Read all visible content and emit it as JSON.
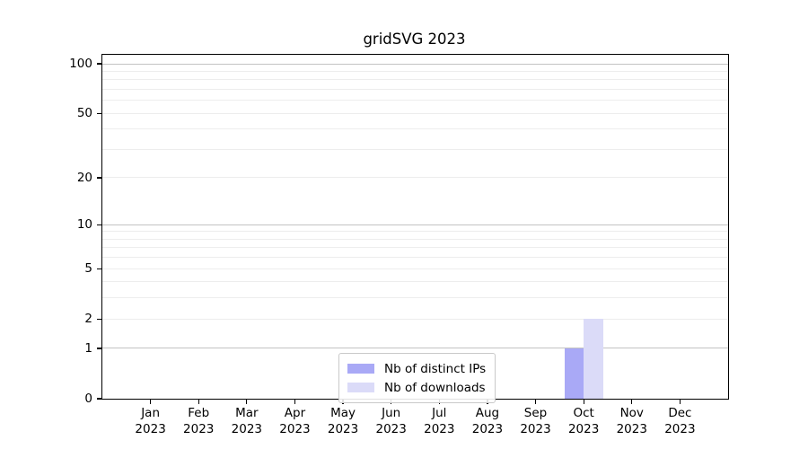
{
  "figure": {
    "title": "gridSVG 2023"
  },
  "chart_data": {
    "type": "bar",
    "title": "gridSVG 2023",
    "categories": [
      "Jan",
      "Feb",
      "Mar",
      "Apr",
      "May",
      "Jun",
      "Jul",
      "Aug",
      "Sep",
      "Oct",
      "Nov",
      "Dec"
    ],
    "x_sublabel_year": "2023",
    "series": [
      {
        "name": "Nb of distinct IPs",
        "color": "#a9a9f6",
        "values": [
          0,
          0,
          0,
          0,
          0,
          0,
          0,
          0,
          0,
          1,
          0,
          0
        ]
      },
      {
        "name": "Nb of downloads",
        "color": "#dbdbf8",
        "values": [
          0,
          0,
          0,
          0,
          0,
          0,
          0,
          0,
          0,
          2,
          0,
          0
        ]
      }
    ],
    "y_axis": {
      "scale": "log1p",
      "limits": [
        0,
        100
      ],
      "major_ticks": [
        0,
        1,
        2,
        5,
        10,
        20,
        50,
        100
      ],
      "decade_gridlines": [
        1,
        10,
        100
      ],
      "minor_gridlines": [
        2,
        3,
        4,
        5,
        6,
        7,
        8,
        9,
        20,
        30,
        40,
        50,
        60,
        70,
        80,
        90
      ]
    },
    "legend": {
      "position": "lower center",
      "entries": [
        "Nb of distinct IPs",
        "Nb of downloads"
      ]
    },
    "colors": {
      "major_grid": "#c3c3c3",
      "minor_grid": "#ededed",
      "spine": "#000000",
      "text": "#000000",
      "background": "#ffffff"
    },
    "grid": true
  }
}
